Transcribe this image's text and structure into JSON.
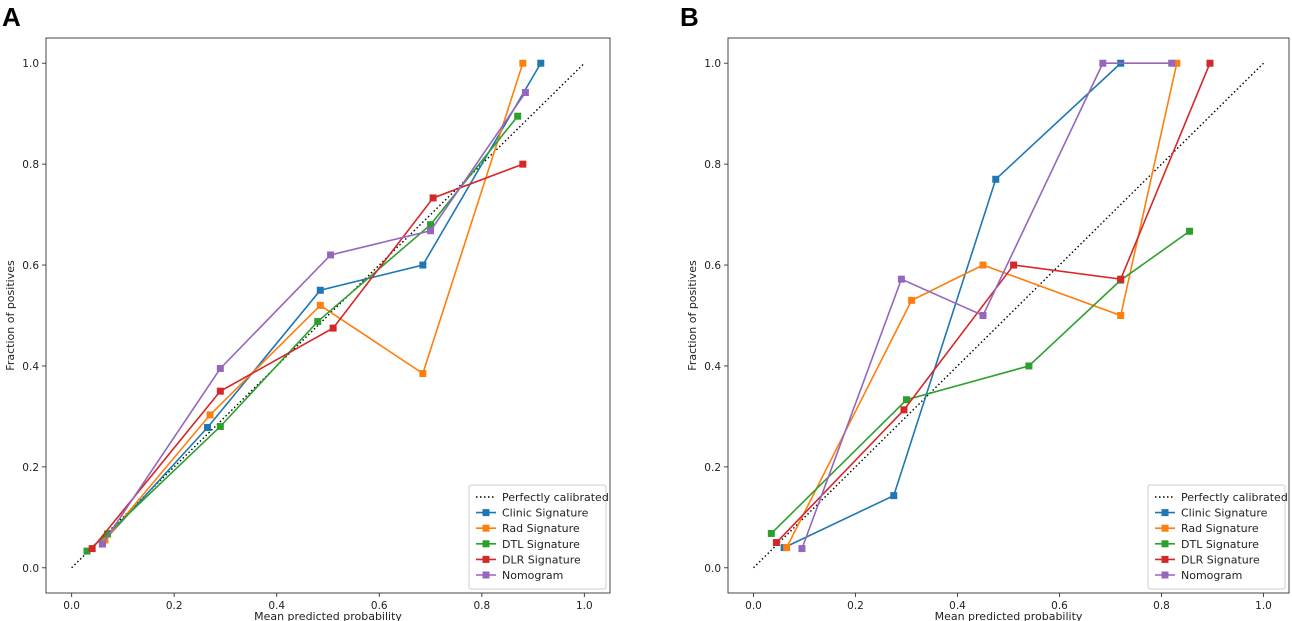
{
  "chart_data": [
    {
      "panel_label": "A",
      "type": "line",
      "title": "",
      "xlabel": "Mean predicted probability",
      "ylabel": "Fraction of positives",
      "xlim": [
        -0.05,
        1.05
      ],
      "ylim": [
        -0.05,
        1.05
      ],
      "xticks": [
        "0.0",
        "0.2",
        "0.4",
        "0.6",
        "0.8",
        "1.0"
      ],
      "yticks": [
        "0.0",
        "0.2",
        "0.4",
        "0.6",
        "0.8",
        "1.0"
      ],
      "legend_position": "lower-right",
      "reference": {
        "name": "Perfectly calibrated",
        "x": [
          0,
          1
        ],
        "y": [
          0,
          1
        ],
        "color": "#000000"
      },
      "series": [
        {
          "name": "Clinic Signature",
          "color": "#1f77b4",
          "x": [
            0.06,
            0.265,
            0.485,
            0.685,
            0.915
          ],
          "y": [
            0.05,
            0.278,
            0.55,
            0.6,
            1.0
          ]
        },
        {
          "name": "Rad Signature",
          "color": "#ff7f0e",
          "x": [
            0.065,
            0.27,
            0.485,
            0.685,
            0.88
          ],
          "y": [
            0.055,
            0.303,
            0.52,
            0.385,
            1.0
          ]
        },
        {
          "name": "DTL Signature",
          "color": "#2ca02c",
          "x": [
            0.03,
            0.07,
            0.29,
            0.48,
            0.7,
            0.87
          ],
          "y": [
            0.033,
            0.067,
            0.28,
            0.488,
            0.68,
            0.895
          ]
        },
        {
          "name": "DLR Signature",
          "color": "#d62728",
          "x": [
            0.04,
            0.29,
            0.51,
            0.705,
            0.88
          ],
          "y": [
            0.038,
            0.35,
            0.475,
            0.733,
            0.8
          ]
        },
        {
          "name": "Nomogram",
          "color": "#9467bd",
          "x": [
            0.06,
            0.29,
            0.505,
            0.7,
            0.885
          ],
          "y": [
            0.047,
            0.395,
            0.62,
            0.668,
            0.942
          ]
        }
      ]
    },
    {
      "panel_label": "B",
      "type": "line",
      "title": "",
      "xlabel": "Mean predicted probability",
      "ylabel": "Fraction of positives",
      "xlim": [
        -0.05,
        1.05
      ],
      "ylim": [
        -0.05,
        1.05
      ],
      "xticks": [
        "0.0",
        "0.2",
        "0.4",
        "0.6",
        "0.8",
        "1.0"
      ],
      "yticks": [
        "0.0",
        "0.2",
        "0.4",
        "0.6",
        "0.8",
        "1.0"
      ],
      "legend_position": "lower-right",
      "reference": {
        "name": "Perfectly calibrated",
        "x": [
          0,
          1
        ],
        "y": [
          0,
          1
        ],
        "color": "#000000"
      },
      "series": [
        {
          "name": "Clinic Signature",
          "color": "#1f77b4",
          "x": [
            0.06,
            0.275,
            0.475,
            0.72
          ],
          "y": [
            0.04,
            0.143,
            0.77,
            1.0
          ]
        },
        {
          "name": "Rad Signature",
          "color": "#ff7f0e",
          "x": [
            0.065,
            0.31,
            0.45,
            0.72,
            0.83
          ],
          "y": [
            0.04,
            0.53,
            0.6,
            0.5,
            1.0
          ]
        },
        {
          "name": "DTL Signature",
          "color": "#2ca02c",
          "x": [
            0.035,
            0.3,
            0.54,
            0.72,
            0.855
          ],
          "y": [
            0.068,
            0.333,
            0.4,
            0.57,
            0.667
          ]
        },
        {
          "name": "DLR Signature",
          "color": "#d62728",
          "x": [
            0.045,
            0.295,
            0.51,
            0.72,
            0.895
          ],
          "y": [
            0.05,
            0.313,
            0.6,
            0.572,
            1.0
          ]
        },
        {
          "name": "Nomogram",
          "color": "#9467bd",
          "x": [
            0.095,
            0.29,
            0.45,
            0.685,
            0.82
          ],
          "y": [
            0.038,
            0.572,
            0.5,
            1.0,
            1.0
          ]
        }
      ]
    }
  ]
}
